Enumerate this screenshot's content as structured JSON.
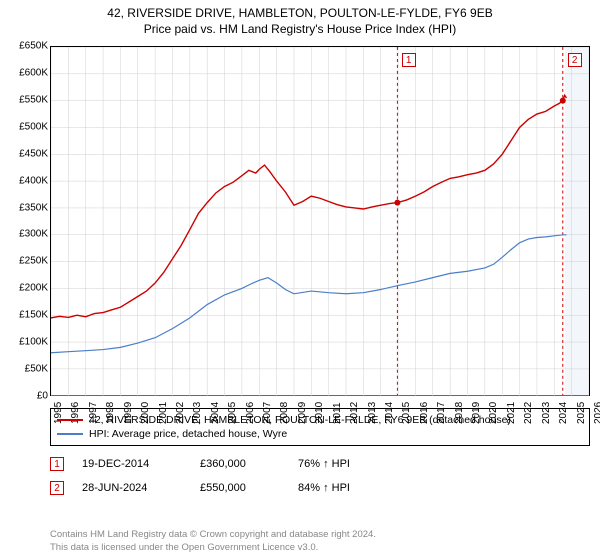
{
  "title": "42, RIVERSIDE DRIVE, HAMBLETON, POULTON-LE-FYLDE, FY6 9EB",
  "subtitle": "Price paid vs. HM Land Registry's House Price Index (HPI)",
  "chart": {
    "type": "line",
    "background_color": "#ffffff",
    "grid_color": "#d0d0d0",
    "axis_color": "#000000",
    "ylim": [
      0,
      650000
    ],
    "ytick_step": 50000,
    "ytick_prefix": "£",
    "ytick_labels": [
      "£0",
      "£50K",
      "£100K",
      "£150K",
      "£200K",
      "£250K",
      "£300K",
      "£350K",
      "£400K",
      "£450K",
      "£500K",
      "£550K",
      "£600K",
      "£650K"
    ],
    "xlim": [
      1995,
      2026
    ],
    "xtick_step": 1,
    "xtick_labels": [
      "1995",
      "1996",
      "1997",
      "1998",
      "1999",
      "2000",
      "2001",
      "2002",
      "2003",
      "2004",
      "2005",
      "2006",
      "2007",
      "2008",
      "2009",
      "2010",
      "2011",
      "2012",
      "2013",
      "2014",
      "2015",
      "2016",
      "2017",
      "2018",
      "2019",
      "2020",
      "2021",
      "2022",
      "2023",
      "2024",
      "2025",
      "2026"
    ],
    "forecast_shade_from_x": 2024.5,
    "forecast_shade_color": "#e9eef5",
    "series": [
      {
        "name": "price_paid",
        "label": "42, RIVERSIDE DRIVE, HAMBLETON, POULTON-LE-FYLDE, FY6 9EB (detached house)",
        "color": "#cc0000",
        "line_width": 1.4,
        "data": [
          [
            1995,
            145000
          ],
          [
            1995.5,
            148000
          ],
          [
            1996,
            146000
          ],
          [
            1996.5,
            150000
          ],
          [
            1997,
            147000
          ],
          [
            1997.5,
            153000
          ],
          [
            1998,
            155000
          ],
          [
            1998.5,
            160000
          ],
          [
            1999,
            165000
          ],
          [
            1999.5,
            175000
          ],
          [
            2000,
            185000
          ],
          [
            2000.5,
            195000
          ],
          [
            2001,
            210000
          ],
          [
            2001.5,
            230000
          ],
          [
            2002,
            255000
          ],
          [
            2002.5,
            280000
          ],
          [
            2003,
            310000
          ],
          [
            2003.5,
            340000
          ],
          [
            2004,
            360000
          ],
          [
            2004.5,
            378000
          ],
          [
            2005,
            390000
          ],
          [
            2005.5,
            398000
          ],
          [
            2006,
            410000
          ],
          [
            2006.4,
            420000
          ],
          [
            2006.8,
            415000
          ],
          [
            2007,
            422000
          ],
          [
            2007.3,
            430000
          ],
          [
            2007.6,
            418000
          ],
          [
            2008,
            400000
          ],
          [
            2008.5,
            380000
          ],
          [
            2009,
            355000
          ],
          [
            2009.5,
            362000
          ],
          [
            2010,
            372000
          ],
          [
            2010.5,
            368000
          ],
          [
            2011,
            362000
          ],
          [
            2011.5,
            356000
          ],
          [
            2012,
            352000
          ],
          [
            2012.5,
            350000
          ],
          [
            2013,
            348000
          ],
          [
            2013.5,
            352000
          ],
          [
            2014,
            355000
          ],
          [
            2014.5,
            358000
          ],
          [
            2014.96,
            360000
          ],
          [
            2015.5,
            365000
          ],
          [
            2016,
            372000
          ],
          [
            2016.5,
            380000
          ],
          [
            2017,
            390000
          ],
          [
            2017.5,
            398000
          ],
          [
            2018,
            405000
          ],
          [
            2018.5,
            408000
          ],
          [
            2019,
            412000
          ],
          [
            2019.5,
            415000
          ],
          [
            2020,
            420000
          ],
          [
            2020.5,
            432000
          ],
          [
            2021,
            450000
          ],
          [
            2021.5,
            475000
          ],
          [
            2022,
            500000
          ],
          [
            2022.5,
            515000
          ],
          [
            2023,
            525000
          ],
          [
            2023.5,
            530000
          ],
          [
            2024,
            540000
          ],
          [
            2024.3,
            545000
          ],
          [
            2024.49,
            550000
          ],
          [
            2024.6,
            560000
          ],
          [
            2024.7,
            555000
          ]
        ]
      },
      {
        "name": "hpi",
        "label": "HPI: Average price, detached house, Wyre",
        "color": "#4a7ec8",
        "line_width": 1.2,
        "data": [
          [
            1995,
            80000
          ],
          [
            1996,
            82000
          ],
          [
            1997,
            84000
          ],
          [
            1998,
            86000
          ],
          [
            1999,
            90000
          ],
          [
            2000,
            98000
          ],
          [
            2001,
            108000
          ],
          [
            2002,
            125000
          ],
          [
            2003,
            145000
          ],
          [
            2004,
            170000
          ],
          [
            2005,
            188000
          ],
          [
            2006,
            200000
          ],
          [
            2006.5,
            208000
          ],
          [
            2007,
            215000
          ],
          [
            2007.5,
            220000
          ],
          [
            2008,
            210000
          ],
          [
            2008.5,
            198000
          ],
          [
            2009,
            190000
          ],
          [
            2010,
            195000
          ],
          [
            2011,
            192000
          ],
          [
            2012,
            190000
          ],
          [
            2013,
            192000
          ],
          [
            2014,
            198000
          ],
          [
            2014.96,
            205000
          ],
          [
            2016,
            212000
          ],
          [
            2017,
            220000
          ],
          [
            2018,
            228000
          ],
          [
            2019,
            232000
          ],
          [
            2020,
            238000
          ],
          [
            2020.5,
            245000
          ],
          [
            2021,
            258000
          ],
          [
            2021.5,
            272000
          ],
          [
            2022,
            285000
          ],
          [
            2022.5,
            292000
          ],
          [
            2023,
            295000
          ],
          [
            2023.5,
            296000
          ],
          [
            2024,
            298000
          ],
          [
            2024.49,
            300000
          ],
          [
            2024.7,
            300000
          ]
        ]
      }
    ],
    "trans_markers": [
      {
        "n": "1",
        "x": 2014.96,
        "y": 360000,
        "color": "#cc0000"
      },
      {
        "n": "2",
        "x": 2024.49,
        "y": 550000,
        "color": "#cc0000"
      }
    ]
  },
  "legend": {
    "rows": [
      {
        "color": "#cc0000",
        "label": "42, RIVERSIDE DRIVE, HAMBLETON, POULTON-LE-FYLDE, FY6 9EB (detached house)"
      },
      {
        "color": "#4a7ec8",
        "label": "HPI: Average price, detached house, Wyre"
      }
    ]
  },
  "transactions": [
    {
      "n": "1",
      "color": "#cc0000",
      "date": "19-DEC-2014",
      "price": "£360,000",
      "delta": "76% ↑ HPI"
    },
    {
      "n": "2",
      "color": "#cc0000",
      "date": "28-JUN-2024",
      "price": "£550,000",
      "delta": "84% ↑ HPI"
    }
  ],
  "footer": {
    "line1": "Contains HM Land Registry data © Crown copyright and database right 2024.",
    "line2": "This data is licensed under the Open Government Licence v3.0."
  }
}
